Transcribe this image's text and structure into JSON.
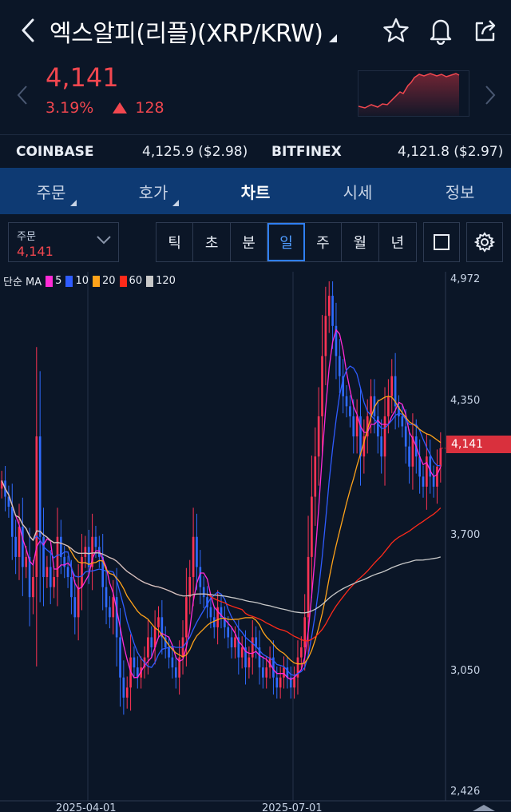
{
  "header": {
    "title": "엑스알피(리플)(XRP/KRW)",
    "icons": [
      "back-icon",
      "star-icon",
      "bell-icon",
      "share-icon"
    ]
  },
  "quote": {
    "price": "4,141",
    "change_pct": "3.19%",
    "change_abs": "128",
    "color": "#f2474f"
  },
  "exchanges": {
    "coinbase_name": "COINBASE",
    "coinbase_value": "4,125.9 ($2.98)",
    "bitfinex_name": "BITFINEX",
    "bitfinex_value": "4,121.8 ($2.97)"
  },
  "tabs": [
    {
      "label": "주문"
    },
    {
      "label": "호가"
    },
    {
      "label": "차트",
      "active": true
    },
    {
      "label": "시세"
    },
    {
      "label": "정보"
    }
  ],
  "order": {
    "label": "주문",
    "value": "4,141"
  },
  "periods": [
    "틱",
    "초",
    "분",
    "일",
    "주",
    "월",
    "년"
  ],
  "active_period": "일",
  "chart_data": {
    "type": "candlestick",
    "legend": {
      "prefix": "단순 MA",
      "items": [
        {
          "label": "5",
          "color": "#ff2bd6"
        },
        {
          "label": "10",
          "color": "#2f5cff"
        },
        {
          "label": "20",
          "color": "#ffa31a"
        },
        {
          "label": "60",
          "color": "#ff2a1a"
        },
        {
          "label": "120",
          "color": "#c8c8c8"
        }
      ]
    },
    "y_ticks": [
      "4,972",
      "4,350",
      "3,700",
      "3,050",
      "2,426"
    ],
    "ylim": [
      2426,
      4972
    ],
    "current_price_label": "4,141",
    "current_price": 4141,
    "x_ticks": [
      "2025-04-01",
      "2025-07-01"
    ],
    "up_color": "#ff3355",
    "down_color": "#2f6bff",
    "close_series": [
      3980,
      3900,
      3850,
      3700,
      3600,
      3750,
      3550,
      3600,
      3400,
      3500,
      4200,
      3700,
      3500,
      3550,
      3450,
      3500,
      3700,
      3600,
      3550,
      3500,
      3400,
      3300,
      3450,
      3600,
      3650,
      3550,
      3700,
      3650,
      3600,
      3450,
      3350,
      3300,
      3400,
      3200,
      3000,
      2900,
      2950,
      3100,
      3050,
      3000,
      3050,
      3100,
      3200,
      3150,
      3250,
      3300,
      3200,
      3150,
      3100,
      3050,
      3000,
      3100,
      3200,
      3400,
      3500,
      3700,
      3550,
      3450,
      3400,
      3350,
      3300,
      3250,
      3350,
      3300,
      3250,
      3200,
      3150,
      3200,
      3100,
      3150,
      3050,
      3100,
      3200,
      3150,
      3050,
      3000,
      3050,
      3100,
      3000,
      2950,
      3000,
      3050,
      3000,
      2950,
      3000,
      3100,
      3150,
      3300,
      3600,
      3900,
      4100,
      4300,
      4600,
      4800,
      4900,
      4750,
      4600,
      4500,
      4400,
      4350,
      4300,
      4200,
      4300,
      4100,
      4200,
      4300,
      4400,
      4300,
      4200,
      4100,
      4300,
      4400,
      4500,
      4350,
      4300,
      4250,
      4150,
      4050,
      4200,
      4100,
      4000,
      3950,
      4100,
      4000,
      3950,
      4050,
      4141
    ]
  }
}
